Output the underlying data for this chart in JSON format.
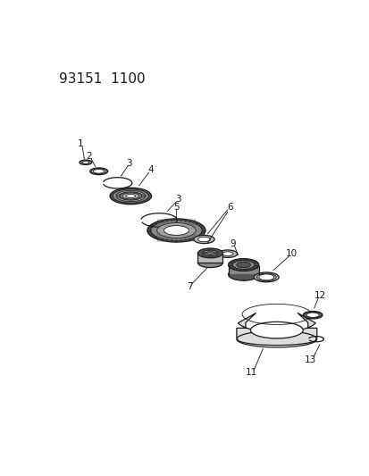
{
  "title": "93151  1100",
  "bg_color": "#ffffff",
  "line_color": "#1a1a1a",
  "dark_gray": "#555555",
  "mid_gray": "#888888",
  "light_gray": "#bbbbbb",
  "very_light_gray": "#dddddd",
  "hatch_gray": "#999999",
  "title_fontsize": 11,
  "label_fontsize": 7.5,
  "fig_width": 4.14,
  "fig_height": 5.33,
  "dpi": 100
}
